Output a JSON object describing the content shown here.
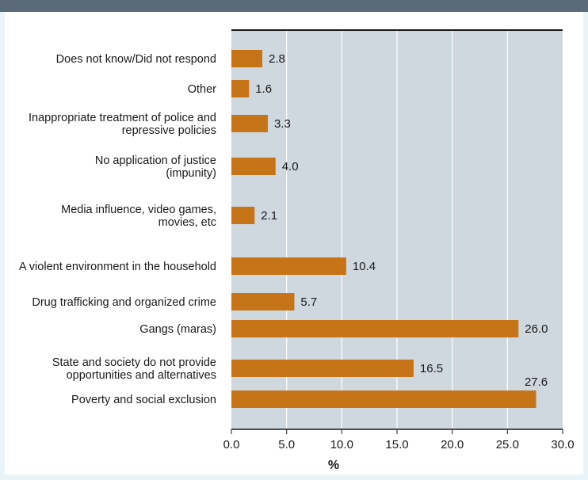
{
  "chart_data": {
    "type": "bar",
    "orientation": "horizontal",
    "categories": [
      "Does not know/Did not respond",
      "Other",
      "Inappropriate treatment of police and repressive policies",
      "No application of justice (impunity)",
      "Media influence, video games, movies, etc",
      "A violent environment in the household",
      "Drug trafficking and organized crime",
      "Gangs (maras)",
      "State and society do not provide opportunities and alternatives",
      "Poverty and social exclusion"
    ],
    "category_lines": [
      [
        "Does not know/Did not respond"
      ],
      [
        "Other"
      ],
      [
        "Inappropriate treatment of police and",
        "repressive policies"
      ],
      [
        "No application of justice",
        "(impunity)"
      ],
      [
        "Media influence, video games,",
        "movies, etc"
      ],
      [
        "A violent environment in the household"
      ],
      [
        "Drug trafficking and organized crime"
      ],
      [
        "Gangs (maras)"
      ],
      [
        "State and society do not provide",
        "opportunities and alternatives"
      ],
      [
        "Poverty and social exclusion"
      ]
    ],
    "values": [
      2.8,
      1.6,
      3.3,
      4.0,
      2.1,
      10.4,
      5.7,
      26.0,
      16.5,
      27.6
    ],
    "value_labels": [
      "2.8",
      "1.6",
      "3.3",
      "4.0",
      "2.1",
      "10.4",
      "5.7",
      "26.0",
      "16.5",
      "27.6"
    ],
    "xlim": [
      0,
      30
    ],
    "xticks": [
      "0.0",
      "5.0",
      "10.0",
      "15.0",
      "20.0",
      "25.0",
      "30.0"
    ],
    "xlabel": "%",
    "title": "",
    "grid": true,
    "colors": {
      "bar": "#c57517",
      "plot_background": "#cfd7df",
      "gridline": "#ffffff",
      "frame": "#e9f4f8",
      "top_rule": "#5b6a78"
    }
  }
}
